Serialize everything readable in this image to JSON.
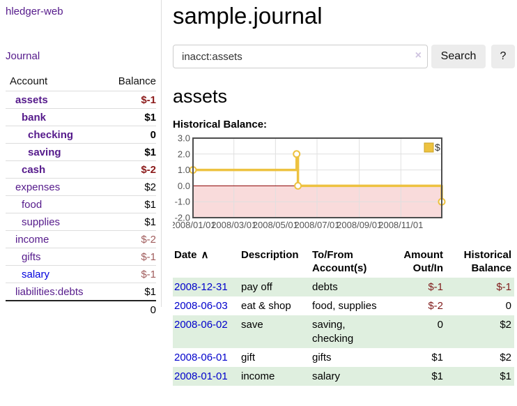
{
  "app": {
    "title": "hledger-web"
  },
  "nav": {
    "journal": "Journal"
  },
  "sidebar": {
    "columns": {
      "account": "Account",
      "balance": "Balance"
    },
    "accounts": [
      {
        "name": "assets",
        "depth": 1,
        "bold": true,
        "link_color": "purple",
        "balance": "$-1",
        "balance_style": "neg-strong"
      },
      {
        "name": "bank",
        "depth": 2,
        "bold": true,
        "link_color": "purple",
        "balance": "$1",
        "balance_style": "pos"
      },
      {
        "name": "checking",
        "depth": 3,
        "bold": true,
        "link_color": "purple",
        "balance": "0",
        "balance_style": "pos"
      },
      {
        "name": "saving",
        "depth": 3,
        "bold": true,
        "link_color": "purple",
        "balance": "$1",
        "balance_style": "pos"
      },
      {
        "name": "cash",
        "depth": 2,
        "bold": true,
        "link_color": "purple",
        "balance": "$-2",
        "balance_style": "neg-strong"
      },
      {
        "name": "expenses",
        "depth": 1,
        "bold": false,
        "link_color": "purple",
        "balance": "$2",
        "balance_style": "pos"
      },
      {
        "name": "food",
        "depth": 2,
        "bold": false,
        "link_color": "purple",
        "balance": "$1",
        "balance_style": "pos"
      },
      {
        "name": "supplies",
        "depth": 2,
        "bold": false,
        "link_color": "purple",
        "balance": "$1",
        "balance_style": "pos"
      },
      {
        "name": "income",
        "depth": 1,
        "bold": false,
        "link_color": "purple",
        "balance": "$-2",
        "balance_style": "neg-soft"
      },
      {
        "name": "gifts",
        "depth": 2,
        "bold": false,
        "link_color": "purple",
        "balance": "$-1",
        "balance_style": "neg-soft"
      },
      {
        "name": "salary",
        "depth": 2,
        "bold": false,
        "link_color": "blue",
        "balance": "$-1",
        "balance_style": "neg-soft"
      },
      {
        "name": "liabilities:debts",
        "depth": 1,
        "bold": false,
        "link_color": "purple",
        "balance": "$1",
        "balance_style": "pos"
      }
    ],
    "total": "0"
  },
  "main": {
    "title": "sample.journal",
    "search": {
      "value": "inacct:assets",
      "clear_icon": "×",
      "search_button": "Search",
      "help_button": "?"
    },
    "heading": "assets",
    "chart_title": "Historical Balance:"
  },
  "chart_data": {
    "type": "line",
    "step": true,
    "title": "Historical Balance",
    "series": [
      {
        "name": "$",
        "color": "#edc240",
        "points": [
          [
            "2008-01-01",
            1
          ],
          [
            "2008-06-01",
            2
          ],
          [
            "2008-06-03",
            0
          ],
          [
            "2008-12-31",
            -1
          ]
        ]
      }
    ],
    "xlim": [
      "2008-01-01",
      "2008-12-31"
    ],
    "ylim": [
      -2,
      3
    ],
    "x_ticks": [
      {
        "date": "2008-01-01",
        "label": "2008/01/01"
      },
      {
        "date": "2008-03-01",
        "label": "2008/03/01"
      },
      {
        "date": "2008-05-01",
        "label": "2008/05/01"
      },
      {
        "date": "2008-07-01",
        "label": "2008/07/01"
      },
      {
        "date": "2008-09-01",
        "label": "2008/09/01"
      },
      {
        "date": "2008-11-01",
        "label": "2008/11/01"
      }
    ],
    "y_ticks": [
      {
        "value": 3,
        "label": "3.0"
      },
      {
        "value": 2,
        "label": "2.0"
      },
      {
        "value": 1,
        "label": "1.0"
      },
      {
        "value": 0,
        "label": "0.0"
      },
      {
        "value": -1,
        "label": "-1.0"
      },
      {
        "value": -2,
        "label": "-2.0"
      }
    ],
    "legend": {
      "label": "$",
      "position": "top-right"
    },
    "grid": true,
    "negative_region_color": "#f9dbdb",
    "zero_line_color": "#8b0000"
  },
  "register": {
    "headers": {
      "date": "Date",
      "sort_icon": "∧",
      "description": "Description",
      "account_line1": "To/From",
      "account_line2": "Account(s)",
      "amount_line1": "Amount",
      "amount_line2": "Out/In",
      "balance_line1": "Historical",
      "balance_line2": "Balance"
    },
    "rows": [
      {
        "date": "2008-12-31",
        "description": "pay off",
        "accounts": "debts",
        "amount": "$-1",
        "balance": "$-1"
      },
      {
        "date": "2008-06-03",
        "description": "eat & shop",
        "accounts": "food, supplies",
        "amount": "$-2",
        "balance": "0"
      },
      {
        "date": "2008-06-02",
        "description": "save",
        "accounts": "saving, checking",
        "amount": "0",
        "balance": "$2"
      },
      {
        "date": "2008-06-01",
        "description": "gift",
        "accounts": "gifts",
        "amount": "$1",
        "balance": "$2"
      },
      {
        "date": "2008-01-01",
        "description": "income",
        "accounts": "salary",
        "amount": "$1",
        "balance": "$1"
      }
    ]
  },
  "colors": {
    "link_purple": "#551a8b",
    "link_blue": "#0000cc",
    "negative_strong": "#8b1a1a",
    "negative_soft": "#a05c5c",
    "negative_table": "#801c1c",
    "row_green": "#dfefdf",
    "series_gold": "#edc240"
  }
}
